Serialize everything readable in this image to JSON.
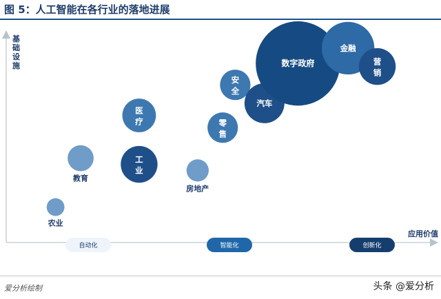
{
  "figure": {
    "title": "图 5：人工智能在各行业的落地进展",
    "source": "爱分析绘制",
    "watermark": "头条 @爱分析"
  },
  "chart_data": {
    "type": "scatter",
    "title": "图 5：人工智能在各行业的落地进展",
    "xlabel": "应用价值",
    "ylabel": "基础设施",
    "stages": [
      "自动化",
      "智能化",
      "创新化"
    ],
    "grid": false,
    "points": [
      {
        "label": "农业",
        "x": 1.0,
        "y": 1.5,
        "size": 0.15,
        "label_position": "below"
      },
      {
        "label": "教育",
        "x": 1.3,
        "y": 3.1,
        "size": 0.28,
        "label_position": "below"
      },
      {
        "label": "医疗",
        "x": 2.0,
        "y": 4.5,
        "size": 0.4,
        "label_position": "inside"
      },
      {
        "label": "工业",
        "x": 2.0,
        "y": 2.9,
        "size": 0.45,
        "label_position": "inside"
      },
      {
        "label": "房地产",
        "x": 2.7,
        "y": 2.7,
        "size": 0.22,
        "label_position": "below"
      },
      {
        "label": "零售",
        "x": 3.0,
        "y": 4.1,
        "size": 0.35,
        "label_position": "inside"
      },
      {
        "label": "安全",
        "x": 3.15,
        "y": 5.5,
        "size": 0.35,
        "label_position": "inside"
      },
      {
        "label": "汽车",
        "x": 3.5,
        "y": 4.9,
        "size": 0.5,
        "label_position": "inside"
      },
      {
        "label": "数字政府",
        "x": 3.9,
        "y": 6.2,
        "size": 1.2,
        "label_position": "inside"
      },
      {
        "label": "金融",
        "x": 4.5,
        "y": 6.7,
        "size": 0.7,
        "label_position": "inside"
      },
      {
        "label": "营销",
        "x": 4.85,
        "y": 6.1,
        "size": 0.45,
        "label_position": "inside"
      }
    ]
  }
}
